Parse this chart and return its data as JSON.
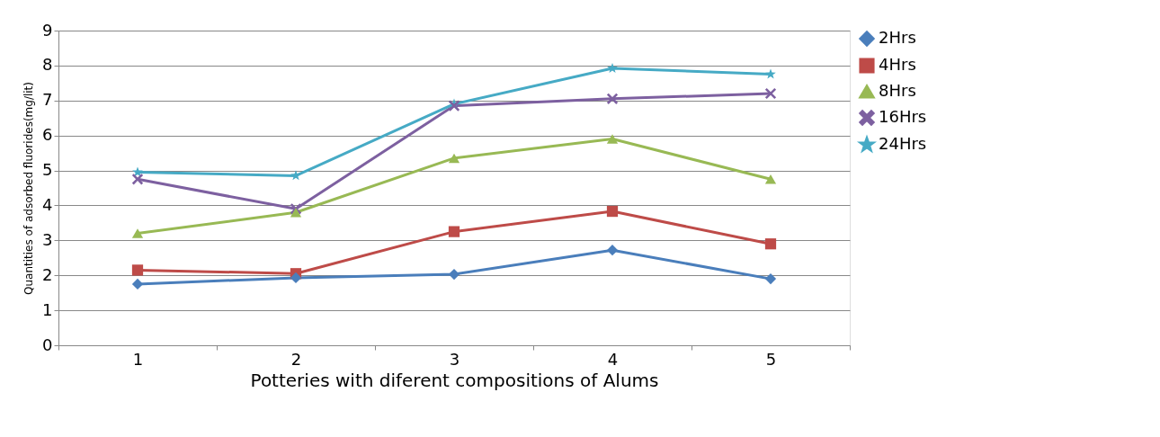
{
  "chart_data": {
    "type": "line",
    "xlabel": "Potteries with diferent compositions of Alums",
    "ylabel": "Quantities of adsorbed fluorides(mg/lit)",
    "categories": [
      "1",
      "2",
      "3",
      "4",
      "5"
    ],
    "ylim": [
      0,
      9
    ],
    "yticks": [
      0,
      1,
      2,
      3,
      4,
      5,
      6,
      7,
      8,
      9
    ],
    "grid": "y",
    "legend": "right",
    "series": [
      {
        "name": "2Hrs",
        "color": "#4a7ebb",
        "marker": "diamond",
        "values": [
          1.75,
          1.93,
          2.03,
          2.72,
          1.9
        ]
      },
      {
        "name": "4Hrs",
        "color": "#be4b48",
        "marker": "square",
        "values": [
          2.15,
          2.05,
          3.25,
          3.83,
          2.9
        ]
      },
      {
        "name": "8Hrs",
        "color": "#98b954",
        "marker": "triangle",
        "values": [
          3.2,
          3.8,
          5.35,
          5.9,
          4.75
        ]
      },
      {
        "name": "16Hrs",
        "color": "#7d60a0",
        "marker": "cross",
        "values": [
          4.75,
          3.9,
          6.85,
          7.05,
          7.2
        ]
      },
      {
        "name": "24Hrs",
        "color": "#46aac5",
        "marker": "star",
        "values": [
          4.95,
          4.85,
          6.9,
          7.92,
          7.75
        ]
      }
    ]
  }
}
